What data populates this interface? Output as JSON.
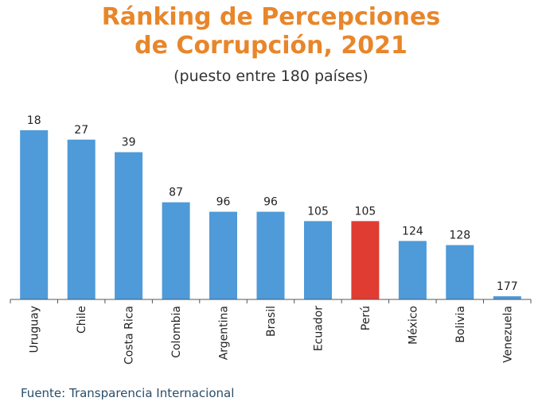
{
  "title_line1": "Ránking de Percepciones",
  "title_line2": "de Corrupción, 2021",
  "subtitle": "(puesto entre 180 países)",
  "source": "Fuente: Transparencia Internacional",
  "colors": {
    "bar": "#4f9ad8",
    "highlight": "#e03c31",
    "title": "#e8862a",
    "axis": "#555555"
  },
  "chart_data": {
    "type": "bar",
    "categories": [
      "Uruguay",
      "Chile",
      "Costa Rica",
      "Colombia",
      "Argentina",
      "Brasil",
      "Ecuador",
      "Perú",
      "México",
      "Bolivia",
      "Venezuela"
    ],
    "values": [
      18,
      27,
      39,
      87,
      96,
      96,
      105,
      105,
      124,
      128,
      177
    ],
    "highlight_category": "Perú",
    "ylim": [
      0,
      180
    ],
    "inverted": true,
    "grid": false,
    "data_labels": true
  }
}
